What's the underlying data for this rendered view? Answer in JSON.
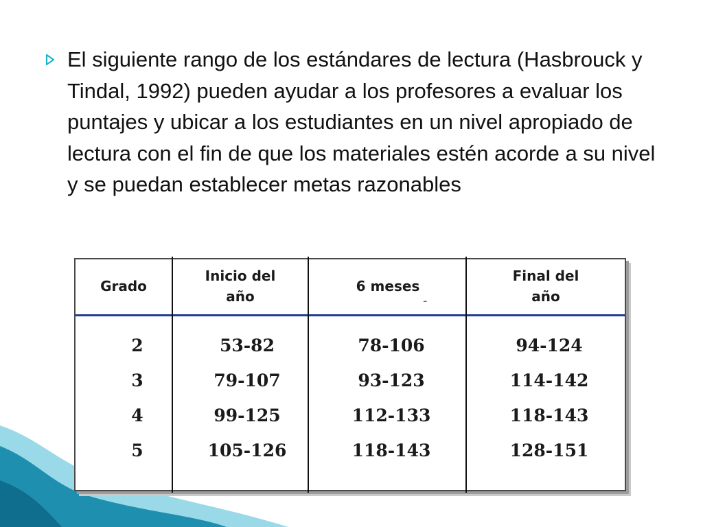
{
  "slide": {
    "bullet_text": "El siguiente rango de los estándares de lectura (Hasbrouck y Tindal, 1992) pueden ayudar a los profesores a evaluar los puntajes y ubicar a los estudiantes en un nivel apropiado de lectura con el fin de que los materiales estén acorde a su nivel y se puedan establecer metas razonables",
    "colors": {
      "bullet_arrow": "#1fb4c8",
      "wave_dark": "#1f8fb0",
      "wave_light": "#8fd6e6",
      "table_rule": "#1e3c94"
    }
  },
  "table": {
    "headers": [
      {
        "line1": "Grado",
        "line2": ""
      },
      {
        "line1": "Inicio del",
        "line2": "año"
      },
      {
        "line1": "6 meses",
        "line2": ""
      },
      {
        "line1": "Final del",
        "line2": "año"
      }
    ],
    "header_mark": "-",
    "rows": [
      [
        "2",
        "53-82",
        "78-106",
        "94-124"
      ],
      [
        "3",
        "79-107",
        "93-123",
        "114-142"
      ],
      [
        "4",
        "99-125",
        "112-133",
        "118-143"
      ],
      [
        "5",
        "105-126",
        "118-143",
        "128-151"
      ]
    ]
  }
}
